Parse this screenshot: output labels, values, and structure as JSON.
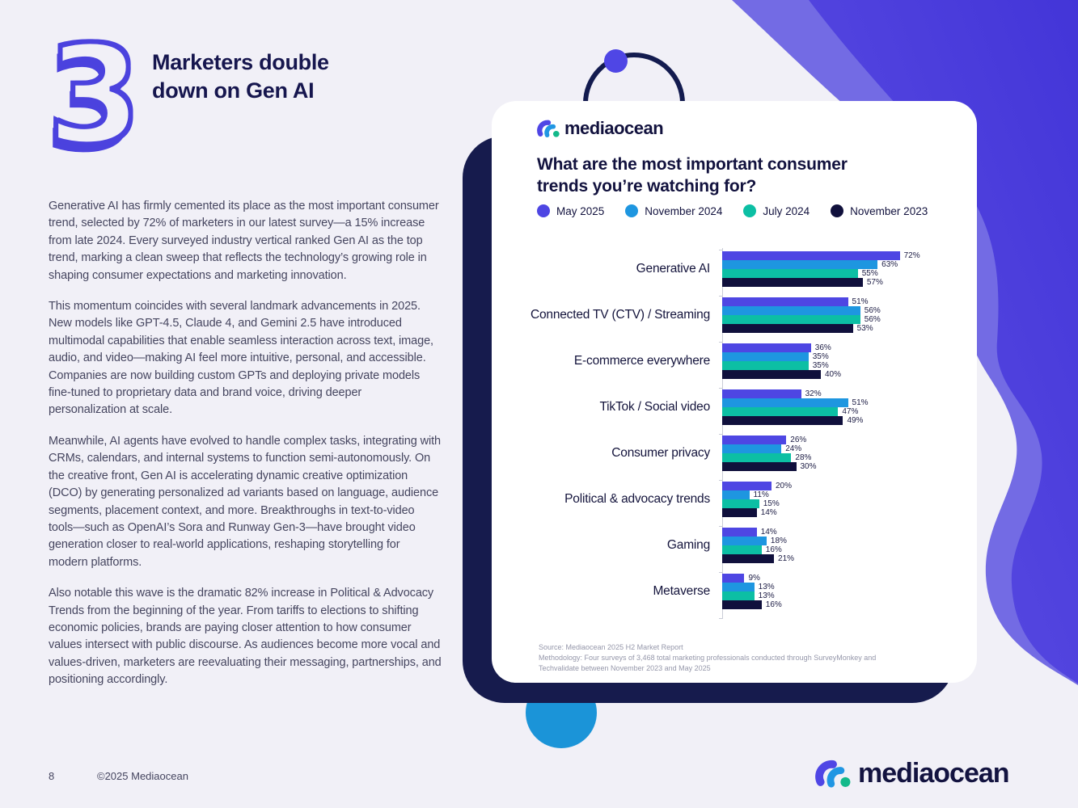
{
  "page": {
    "section_number": "3",
    "heading": "Marketers double down on Gen AI",
    "paragraphs": [
      "Generative AI has firmly cemented its place as the most important consumer trend, selected by 72% of marketers in our latest survey—a 15% increase from late 2024. Every surveyed industry vertical ranked Gen AI as the top trend, marking a clean sweep that reflects the technology’s growing role in shaping consumer expectations and marketing innovation.",
      "This momentum coincides with several landmark advancements in 2025. New models like GPT-4.5, Claude 4, and Gemini 2.5 have introduced multimodal capabilities that enable seamless interaction across text, image, audio, and video—making AI feel more intuitive, personal, and accessible. Companies are now building custom GPTs and deploying private models fine-tuned to proprietary data and brand voice, driving deeper personalization at scale.",
      "Meanwhile, AI agents have evolved to handle complex tasks, integrating with CRMs, calendars, and internal systems to function semi-autonomously. On the creative front, Gen AI is accelerating dynamic creative optimization (DCO) by generating personalized ad variants based on language, audience segments, placement context, and more. Breakthroughs in text-to-video tools—such as OpenAI’s Sora and Runway Gen-3—have brought video generation closer to real-world applications, reshaping storytelling for modern platforms.",
      "Also notable this wave is the dramatic 82% increase in Political & Advocacy Trends from the beginning of the year. From tariffs to elections to shifting economic policies, brands are paying closer attention to how consumer values intersect with public discourse. As audiences become more vocal and values-driven, marketers are reevaluating their messaging, partnerships, and positioning accordingly."
    ],
    "footer": {
      "page_number": "8",
      "copyright": "©2025 Mediaocean"
    }
  },
  "card": {
    "logo_text": "mediaocean",
    "title": "What are the most important consumer trends you’re watching for?",
    "source_line1": "Source: Mediaocean 2025 H2 Market Report",
    "source_line2": "Methodology: Four surveys of 3,468 total marketing professionals conducted through SurveyMonkey and Techvalidate between November 2023 and May 2025"
  },
  "footer_brand": {
    "logo_text": "mediaocean"
  },
  "chart_data": {
    "type": "bar",
    "orientation": "horizontal",
    "title": "What are the most important consumer trends you’re watching for?",
    "value_suffix": "%",
    "xlim": [
      0,
      100
    ],
    "legend_position": "top",
    "grid": false,
    "categories": [
      "Generative AI",
      "Connected TV (CTV) / Streaming",
      "E-commerce everywhere",
      "TikTok / Social video",
      "Consumer privacy",
      "Political & advocacy trends",
      "Gaming",
      "Metaverse"
    ],
    "series": [
      {
        "name": "May 2025",
        "color": "#4e46e3",
        "values": [
          72,
          51,
          36,
          32,
          26,
          20,
          14,
          9
        ]
      },
      {
        "name": "November 2024",
        "color": "#1e96e0",
        "values": [
          63,
          56,
          35,
          51,
          24,
          11,
          18,
          13
        ]
      },
      {
        "name": "July 2024",
        "color": "#0cbfa4",
        "values": [
          55,
          56,
          35,
          47,
          28,
          15,
          16,
          13
        ]
      },
      {
        "name": "November 2023",
        "color": "#10103c",
        "values": [
          57,
          53,
          40,
          49,
          30,
          14,
          21,
          16
        ]
      }
    ]
  },
  "colors": {
    "accent_purple": "#4f46e5",
    "blob_light": "#736be4",
    "blob_dark_top": "#4335d8",
    "blob_dark_bottom": "#5f51e5",
    "navy": "#161b4d",
    "decoration_blue_circle": "#1b94d8",
    "page_background": "#f1f0f7"
  }
}
